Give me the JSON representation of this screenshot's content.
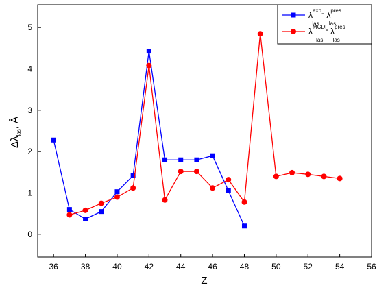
{
  "chart_data": {
    "type": "line",
    "xlabel": "Z",
    "ylabel": "Δλ",
    "ylabel_sub": "las",
    "ylabel_unit": ", Å",
    "xlim": [
      35,
      56
    ],
    "ylim": [
      -0.55,
      5.55
    ],
    "xticks": [
      36,
      38,
      40,
      42,
      44,
      46,
      48,
      50,
      52,
      54,
      56
    ],
    "yticks": [
      0,
      1,
      2,
      3,
      4,
      5
    ],
    "grid": false,
    "legend_position": "top-right",
    "series": [
      {
        "legend": {
          "base": "λ",
          "sub": "las",
          "sup": "exp",
          "dash": "-",
          "base2": "λ",
          "sub2": "las",
          "sup2": "pres"
        },
        "color": "#0000ff",
        "marker": "square",
        "x": [
          36,
          37,
          38,
          39,
          40,
          41,
          42,
          43,
          44,
          45,
          46,
          47,
          48
        ],
        "y": [
          2.28,
          0.6,
          0.37,
          0.55,
          1.03,
          1.42,
          4.43,
          1.8,
          1.8,
          1.8,
          1.9,
          1.05,
          0.2
        ]
      },
      {
        "legend": {
          "base": "λ",
          "sub": "las",
          "sup": "MCDF",
          "dash": "-",
          "base2": "λ",
          "sub2": "las",
          "sup2": "pres"
        },
        "color": "#ff0000",
        "marker": "circle",
        "x": [
          37,
          38,
          39,
          40,
          41,
          42,
          43,
          44,
          45,
          46,
          47,
          48,
          49,
          50,
          51,
          52,
          53,
          54
        ],
        "y": [
          0.47,
          0.58,
          0.75,
          0.9,
          1.12,
          4.08,
          0.83,
          1.52,
          1.52,
          1.12,
          1.32,
          0.78,
          4.85,
          1.4,
          1.49,
          1.45,
          1.4,
          1.35
        ]
      }
    ]
  }
}
